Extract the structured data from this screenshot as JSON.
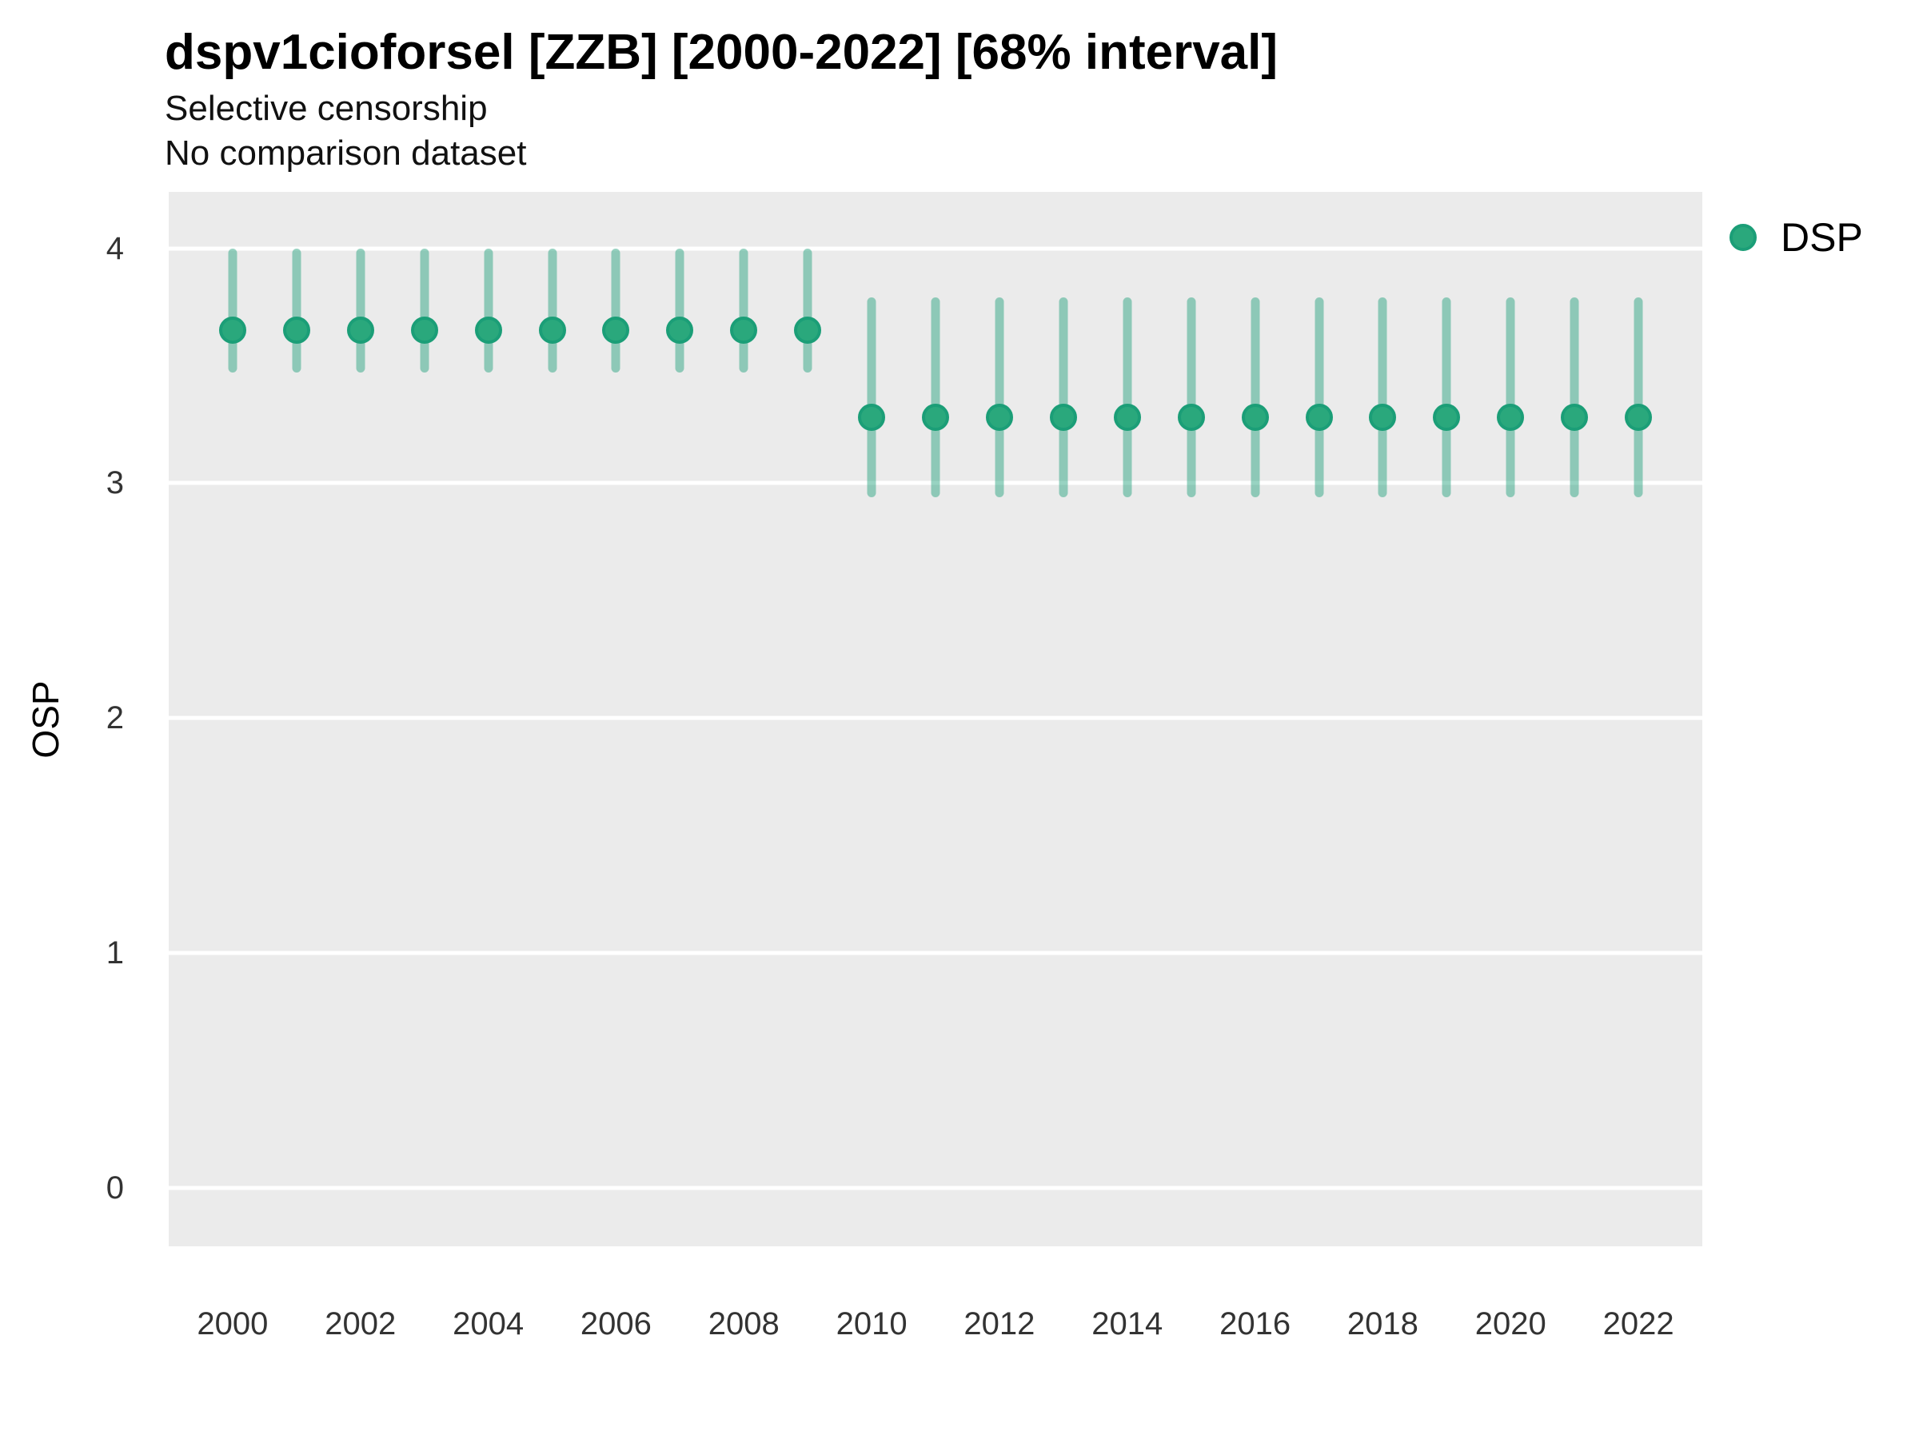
{
  "header": {
    "title": "dspv1cioforsel [ZZB] [2000-2022] [68% interval]",
    "subtitle_line1": "Selective censorship",
    "subtitle_line2": "No comparison dataset"
  },
  "axes": {
    "y_title": "OSP"
  },
  "legend": {
    "label": "DSP"
  },
  "colors": {
    "point_fill": "#2aa87c",
    "point_border": "#1b9e77",
    "interval_bar": "rgba(27,158,119,0.45)",
    "panel_background": "#ebebeb",
    "gridline": "#ffffff",
    "tick_text": "#333333"
  },
  "chart_data": {
    "type": "pointrange",
    "title": "dspv1cioforsel [ZZB] [2000-2022] [68% interval]",
    "subtitle": [
      "Selective censorship",
      "No comparison dataset"
    ],
    "xlabel": "",
    "ylabel": "OSP",
    "interval": "68%",
    "xlim": [
      1999,
      2023
    ],
    "ylim": [
      -0.25,
      4.24
    ],
    "x_ticks": [
      2000,
      2002,
      2004,
      2006,
      2008,
      2010,
      2012,
      2014,
      2016,
      2018,
      2020,
      2022
    ],
    "y_ticks": [
      0,
      1,
      2,
      3,
      4
    ],
    "grid": "horizontal-only",
    "legend_position": "right",
    "series": [
      {
        "name": "DSP",
        "points": [
          {
            "year": 2000,
            "est": 3.65,
            "lo": 3.47,
            "hi": 4.0
          },
          {
            "year": 2001,
            "est": 3.65,
            "lo": 3.47,
            "hi": 4.0
          },
          {
            "year": 2002,
            "est": 3.65,
            "lo": 3.47,
            "hi": 4.0
          },
          {
            "year": 2003,
            "est": 3.65,
            "lo": 3.47,
            "hi": 4.0
          },
          {
            "year": 2004,
            "est": 3.65,
            "lo": 3.47,
            "hi": 4.0
          },
          {
            "year": 2005,
            "est": 3.65,
            "lo": 3.47,
            "hi": 4.0
          },
          {
            "year": 2006,
            "est": 3.65,
            "lo": 3.47,
            "hi": 4.0
          },
          {
            "year": 2007,
            "est": 3.65,
            "lo": 3.47,
            "hi": 4.0
          },
          {
            "year": 2008,
            "est": 3.65,
            "lo": 3.47,
            "hi": 4.0
          },
          {
            "year": 2009,
            "est": 3.65,
            "lo": 3.47,
            "hi": 4.0
          },
          {
            "year": 2010,
            "est": 3.28,
            "lo": 2.94,
            "hi": 3.79
          },
          {
            "year": 2011,
            "est": 3.28,
            "lo": 2.94,
            "hi": 3.79
          },
          {
            "year": 2012,
            "est": 3.28,
            "lo": 2.94,
            "hi": 3.79
          },
          {
            "year": 2013,
            "est": 3.28,
            "lo": 2.94,
            "hi": 3.79
          },
          {
            "year": 2014,
            "est": 3.28,
            "lo": 2.94,
            "hi": 3.79
          },
          {
            "year": 2015,
            "est": 3.28,
            "lo": 2.94,
            "hi": 3.79
          },
          {
            "year": 2016,
            "est": 3.28,
            "lo": 2.94,
            "hi": 3.79
          },
          {
            "year": 2017,
            "est": 3.28,
            "lo": 2.94,
            "hi": 3.79
          },
          {
            "year": 2018,
            "est": 3.28,
            "lo": 2.94,
            "hi": 3.79
          },
          {
            "year": 2019,
            "est": 3.28,
            "lo": 2.94,
            "hi": 3.79
          },
          {
            "year": 2020,
            "est": 3.28,
            "lo": 2.94,
            "hi": 3.79
          },
          {
            "year": 2021,
            "est": 3.28,
            "lo": 2.94,
            "hi": 3.79
          },
          {
            "year": 2022,
            "est": 3.28,
            "lo": 2.94,
            "hi": 3.79
          }
        ]
      }
    ]
  }
}
